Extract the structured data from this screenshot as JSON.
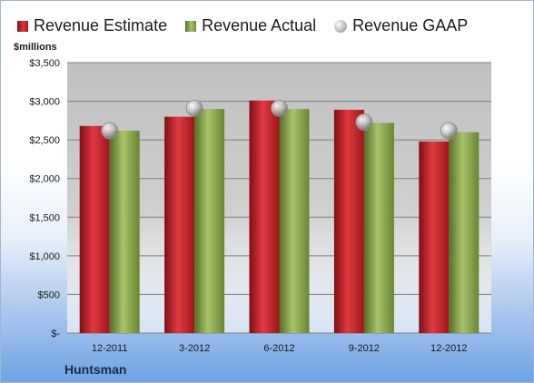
{
  "legend": {
    "estimate": "Revenue Estimate",
    "actual": "Revenue Actual",
    "gaap": "Revenue GAAP"
  },
  "unit_label": "$millions",
  "company": "Huntsman",
  "colors": {
    "estimate": "#c8242b",
    "actual": "#8aa54a",
    "gaap": "#bfbfbf",
    "plot_top": "#c0c0c0",
    "plot_bottom": "#ffffff",
    "grid": "#7f7f7f"
  },
  "chart_data": {
    "type": "bar",
    "categories": [
      "12-2011",
      "3-2012",
      "6-2012",
      "9-2012",
      "12-2012"
    ],
    "series": [
      {
        "name": "Revenue Estimate",
        "type": "bar",
        "values": [
          2680,
          2800,
          3010,
          2890,
          2480
        ]
      },
      {
        "name": "Revenue Actual",
        "type": "bar",
        "values": [
          2620,
          2900,
          2900,
          2720,
          2600
        ]
      },
      {
        "name": "Revenue GAAP",
        "type": "marker",
        "values": [
          2620,
          2910,
          2910,
          2730,
          2620
        ]
      }
    ],
    "ylim": [
      0,
      3500
    ],
    "yticks": [
      {
        "value": 0,
        "label": "$-"
      },
      {
        "value": 500,
        "label": "$500"
      },
      {
        "value": 1000,
        "label": "$1,000"
      },
      {
        "value": 1500,
        "label": "$1,500"
      },
      {
        "value": 2000,
        "label": "$2,000"
      },
      {
        "value": 2500,
        "label": "$2,500"
      },
      {
        "value": 3000,
        "label": "$3,000"
      },
      {
        "value": 3500,
        "label": "$3,500"
      }
    ],
    "ylabel": "$millions",
    "xlabel": "",
    "grid": true,
    "legend_position": "top"
  }
}
